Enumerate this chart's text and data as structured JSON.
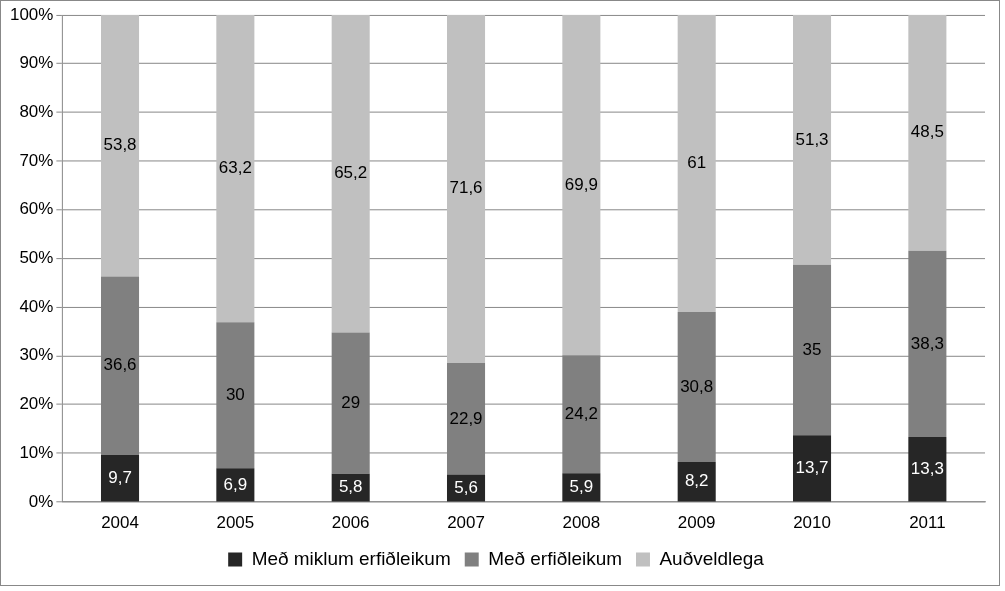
{
  "chart_data": {
    "type": "bar",
    "stacked": true,
    "categories": [
      "2004",
      "2005",
      "2006",
      "2007",
      "2008",
      "2009",
      "2010",
      "2011"
    ],
    "series": [
      {
        "name": "Með miklum erfiðleikum",
        "color": "#262626",
        "values": [
          9.7,
          6.9,
          5.8,
          5.6,
          5.9,
          8.2,
          13.7,
          13.3
        ],
        "value_labels": [
          "9,7",
          "6,9",
          "5,8",
          "5,6",
          "5,9",
          "8,2",
          "13,7",
          "13,3"
        ]
      },
      {
        "name": "Með erfiðleikum",
        "color": "#808080",
        "values": [
          36.6,
          30,
          29,
          22.9,
          24.2,
          30.8,
          35,
          38.3
        ],
        "value_labels": [
          "36,6",
          "30",
          "29",
          "22,9",
          "24,2",
          "30,8",
          "35",
          "38,3"
        ]
      },
      {
        "name": "Auðveldlega",
        "color": "#c0c0c0",
        "values": [
          53.8,
          63.2,
          65.2,
          71.6,
          69.9,
          61,
          51.3,
          48.5
        ],
        "value_labels": [
          "53,8",
          "63,2",
          "65,2",
          "71,6",
          "69,9",
          "61",
          "51,3",
          "48,5"
        ]
      }
    ],
    "ylim": [
      0,
      100
    ],
    "yticks": [
      {
        "value": 0,
        "label": "0%"
      },
      {
        "value": 10,
        "label": "10%"
      },
      {
        "value": 20,
        "label": "20%"
      },
      {
        "value": 30,
        "label": "30%"
      },
      {
        "value": 40,
        "label": "40%"
      },
      {
        "value": 50,
        "label": "50%"
      },
      {
        "value": 60,
        "label": "60%"
      },
      {
        "value": 70,
        "label": "70%"
      },
      {
        "value": 80,
        "label": "80%"
      },
      {
        "value": 90,
        "label": "90%"
      },
      {
        "value": 100,
        "label": "100%"
      }
    ],
    "grid": "y",
    "legend": "bottom"
  }
}
